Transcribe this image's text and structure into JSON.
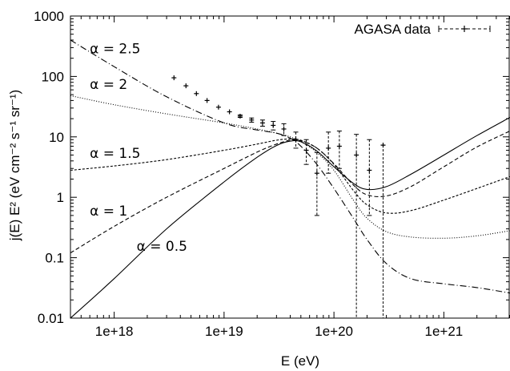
{
  "chart_data": {
    "type": "line",
    "title": "",
    "xlabel": "E (eV)",
    "ylabel": "j(E) E² (eV cm⁻² s⁻¹ sr⁻¹)",
    "xscale": "log",
    "yscale": "log",
    "xlim": [
      4e+17,
      4e+21
    ],
    "ylim": [
      0.01,
      1000
    ],
    "grid": false,
    "legend_position": "top-right",
    "x_ticks": [
      {
        "value": 1e+18,
        "label": "1e+18"
      },
      {
        "value": 1e+19,
        "label": "1e+19"
      },
      {
        "value": 1e+20,
        "label": "1e+20"
      },
      {
        "value": 1e+21,
        "label": "1e+21"
      }
    ],
    "y_ticks": [
      {
        "value": 0.01,
        "label": "0.01"
      },
      {
        "value": 0.1,
        "label": "0.1"
      },
      {
        "value": 1,
        "label": "1"
      },
      {
        "value": 10,
        "label": "10"
      },
      {
        "value": 100,
        "label": "100"
      },
      {
        "value": 1000,
        "label": "1000"
      }
    ],
    "series": [
      {
        "name": "α = 2.5",
        "style": "dashdot",
        "label_at": [
          6e+17,
          240
        ],
        "points": [
          [
            4e+17,
            400
          ],
          [
            1e+18,
            145
          ],
          [
            3e+18,
            46
          ],
          [
            1e+19,
            17
          ],
          [
            2e+19,
            13
          ],
          [
            3e+19,
            11.5
          ],
          [
            4e+19,
            9.5
          ],
          [
            5e+19,
            7
          ],
          [
            7e+19,
            3.5
          ],
          [
            1e+20,
            1.4
          ],
          [
            1.5e+20,
            0.45
          ],
          [
            2e+20,
            0.2
          ],
          [
            3e+20,
            0.08
          ],
          [
            5e+20,
            0.045
          ],
          [
            1e+21,
            0.037
          ],
          [
            2e+21,
            0.032
          ],
          [
            4e+21,
            0.026
          ]
        ]
      },
      {
        "name": "α = 2",
        "style": "dotted",
        "label_at": [
          6e+17,
          62
        ],
        "points": [
          [
            4e+17,
            48
          ],
          [
            1e+18,
            34
          ],
          [
            3e+18,
            24
          ],
          [
            1e+19,
            17
          ],
          [
            2e+19,
            13.5
          ],
          [
            3e+19,
            11.5
          ],
          [
            4e+19,
            10
          ],
          [
            5e+19,
            8.3
          ],
          [
            7e+19,
            5.5
          ],
          [
            1e+20,
            2.8
          ],
          [
            1.5e+20,
            0.9
          ],
          [
            2e+20,
            0.45
          ],
          [
            3e+20,
            0.27
          ],
          [
            5e+20,
            0.22
          ],
          [
            1e+21,
            0.21
          ],
          [
            2e+21,
            0.23
          ],
          [
            4e+21,
            0.28
          ]
        ]
      },
      {
        "name": "α = 1.5",
        "style": "dashed-fine",
        "label_at": [
          6e+17,
          4.5
        ],
        "points": [
          [
            4e+17,
            2.8
          ],
          [
            1e+18,
            3.3
          ],
          [
            3e+18,
            4.2
          ],
          [
            1e+19,
            6
          ],
          [
            2e+19,
            7.6
          ],
          [
            3e+19,
            8.8
          ],
          [
            4e+19,
            9.2
          ],
          [
            5e+19,
            8.8
          ],
          [
            7e+19,
            6.5
          ],
          [
            1e+20,
            3.5
          ],
          [
            1.5e+20,
            1.3
          ],
          [
            2e+20,
            0.75
          ],
          [
            3e+20,
            0.55
          ],
          [
            5e+20,
            0.6
          ],
          [
            1e+21,
            0.9
          ],
          [
            2e+21,
            1.4
          ],
          [
            4e+21,
            2.2
          ]
        ]
      },
      {
        "name": "α = 1",
        "style": "dashed",
        "label_at": [
          6e+17,
          0.5
        ],
        "points": [
          [
            4e+17,
            0.12
          ],
          [
            1e+18,
            0.33
          ],
          [
            3e+18,
            1
          ],
          [
            1e+19,
            3
          ],
          [
            2e+19,
            5.6
          ],
          [
            3e+19,
            7.6
          ],
          [
            4e+19,
            8.8
          ],
          [
            5e+19,
            8.6
          ],
          [
            7e+19,
            6.5
          ],
          [
            1e+20,
            3.6
          ],
          [
            1.5e+20,
            1.6
          ],
          [
            2e+20,
            1.1
          ],
          [
            3e+20,
            1.05
          ],
          [
            5e+20,
            1.5
          ],
          [
            1e+21,
            3.2
          ],
          [
            2e+21,
            6.8
          ],
          [
            4e+21,
            12.5
          ]
        ]
      },
      {
        "name": "α = 0.5",
        "style": "solid",
        "label_at": [
          1.6e+18,
          0.13
        ],
        "points": [
          [
            4e+17,
            0.01
          ],
          [
            1e+18,
            0.045
          ],
          [
            3e+18,
            0.3
          ],
          [
            1e+19,
            1.8
          ],
          [
            2e+19,
            4.6
          ],
          [
            3e+19,
            7.2
          ],
          [
            4e+19,
            8.5
          ],
          [
            5e+19,
            8.3
          ],
          [
            7e+19,
            5.8
          ],
          [
            1e+20,
            3.2
          ],
          [
            1.5e+20,
            1.7
          ],
          [
            2e+20,
            1.35
          ],
          [
            3e+20,
            1.5
          ],
          [
            5e+20,
            2.4
          ],
          [
            1e+21,
            5
          ],
          [
            2e+21,
            10.5
          ],
          [
            4e+21,
            21
          ]
        ]
      }
    ],
    "data_series": {
      "name": "AGASA data",
      "points": [
        {
          "x": 3.5e+18,
          "y": 95,
          "lo": 95,
          "hi": 95
        },
        {
          "x": 4.5e+18,
          "y": 70,
          "lo": 70,
          "hi": 70
        },
        {
          "x": 5.6e+18,
          "y": 52,
          "lo": 52,
          "hi": 52
        },
        {
          "x": 7e+18,
          "y": 40,
          "lo": 40,
          "hi": 40
        },
        {
          "x": 8.9e+18,
          "y": 31,
          "lo": 31,
          "hi": 31
        },
        {
          "x": 1.12e+19,
          "y": 26,
          "lo": 26,
          "hi": 26
        },
        {
          "x": 1.4e+19,
          "y": 22,
          "lo": 21,
          "hi": 23
        },
        {
          "x": 1.78e+19,
          "y": 19,
          "lo": 17.5,
          "hi": 20.5
        },
        {
          "x": 2.24e+19,
          "y": 17,
          "lo": 15,
          "hi": 19
        },
        {
          "x": 2.8e+19,
          "y": 15.5,
          "lo": 13,
          "hi": 18
        },
        {
          "x": 3.5e+19,
          "y": 13.5,
          "lo": 10.5,
          "hi": 16.5
        },
        {
          "x": 4.5e+19,
          "y": 9,
          "lo": 6.5,
          "hi": 12
        },
        {
          "x": 5.6e+19,
          "y": 6,
          "lo": 3.5,
          "hi": 9
        },
        {
          "x": 7e+19,
          "y": 2.5,
          "lo": 0.5,
          "hi": 5.5
        },
        {
          "x": 8.9e+19,
          "y": 6.5,
          "lo": 2.5,
          "hi": 12
        },
        {
          "x": 1.12e+20,
          "y": 7,
          "lo": 3,
          "hi": 12.5
        },
        {
          "x": 1.6e+20,
          "y": 5,
          "lo": 0.01,
          "hi": 11
        },
        {
          "x": 2.1e+20,
          "y": 2.8,
          "lo": 0.5,
          "hi": 9
        },
        {
          "x": 2.8e+20,
          "y": 7.3,
          "lo": 0.01,
          "hi": 7.3
        }
      ]
    }
  }
}
